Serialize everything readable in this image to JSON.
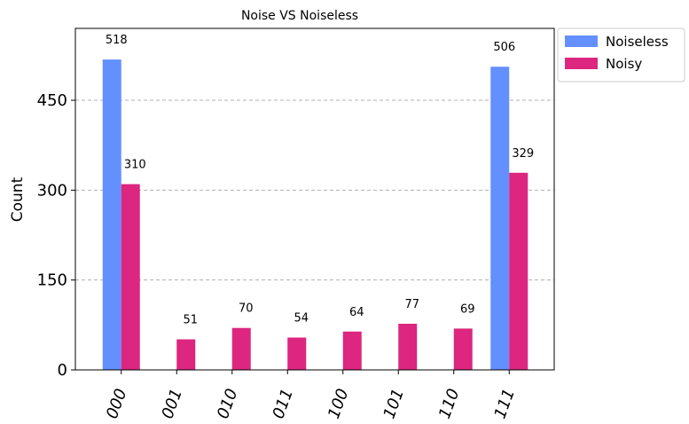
{
  "chart_data": {
    "type": "bar",
    "title": "Noise VS Noiseless",
    "xlabel": "",
    "ylabel": "Count",
    "categories": [
      "000",
      "001",
      "010",
      "011",
      "100",
      "101",
      "110",
      "111"
    ],
    "series": [
      {
        "name": "Noiseless",
        "color": "#648fff",
        "values": [
          518,
          null,
          null,
          null,
          null,
          null,
          null,
          506
        ]
      },
      {
        "name": "Noisy",
        "color": "#dc267f",
        "values": [
          310,
          51,
          70,
          54,
          64,
          77,
          69,
          329
        ]
      }
    ],
    "ylim": [
      0,
      570
    ],
    "yticks": [
      0,
      150,
      300,
      450
    ],
    "grid": "y-dashed",
    "legend_position": "outside-top-right"
  }
}
